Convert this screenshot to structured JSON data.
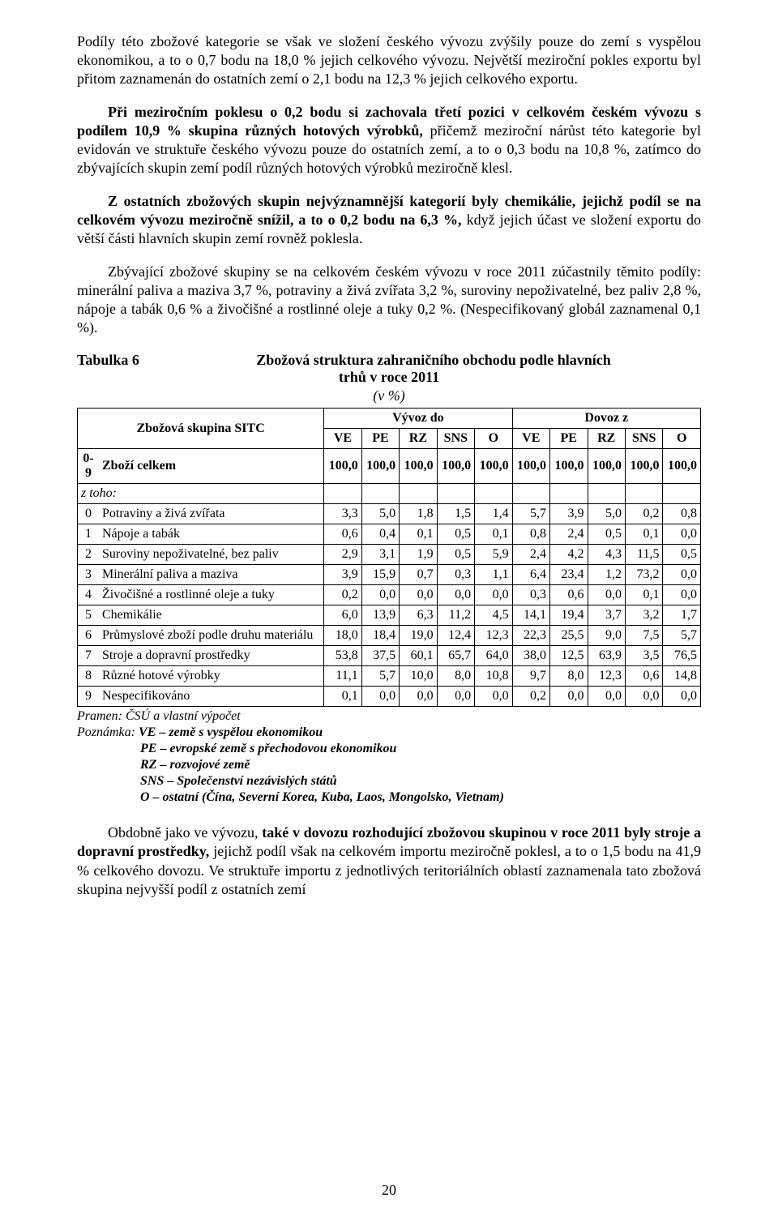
{
  "paragraphs": {
    "p1": "Podíly této zbožové kategorie se však ve složení českého vývozu zvýšily pouze do zemí s vyspělou ekonomikou, a to o 0,7 bodu na 18,0 % jejich celkového vývozu. Největší meziroční pokles exportu byl přitom zaznamenán do ostatních zemí o 2,1 bodu na 12,3 % jejich celkového exportu.",
    "p2_pre": "Při meziročním poklesu o 0,2 bodu si zachovala třetí pozici v celkovém českém vývozu s podílem 10,9 % skupina různých hotových výrobků,",
    "p2_post": " přičemž meziroční nárůst této kategorie byl evidován ve struktuře českého vývozu pouze do ostatních zemí, a to o 0,3 bodu na 10,8 %, zatímco do zbývajících skupin zemí podíl různých hotových výrobků meziročně klesl.",
    "p3_pre": "Z ostatních zbožových skupin nejvýznamnější kategorií byly chemikálie, jejichž podíl se na celkovém vývozu meziročně snížil, a to o 0,2 bodu na 6,3 %,",
    "p3_post": " když jejich účast ve složení exportu do větší části hlavních skupin zemí rovněž poklesla.",
    "p4": "Zbývající zbožové skupiny se na celkovém českém vývozu v roce 2011 zúčastnily těmito podíly: minerální paliva a maziva 3,7 %, potraviny a živá zvířata 3,2 %, suroviny nepoživatelné, bez paliv 2,8 %, nápoje a tabák 0,6 % a živočišné a rostlinné oleje a tuky 0,2 %. (Nespecifikovaný globál zaznamenal 0,1 %).",
    "p5_plain": "Obdobně jako ve vývozu, ",
    "p5_bold": "také v dovozu rozhodující zbožovou skupinou v roce 2011 byly stroje a dopravní prostředky,",
    "p5_post": " jejichž podíl však na celkovém importu meziročně poklesl, a to o 1,5 bodu na 41,9 % celkového dovozu. Ve struktuře importu z jednotlivých teritoriálních oblastí zaznamenala tato zbožová skupina nejvyšší podíl z ostatních zemí"
  },
  "table": {
    "label": "Tabulka 6",
    "title_line1": "Zbožová struktura zahraničního obchodu podle hlavních",
    "title_line2": "trhů v roce 2011",
    "unit": "(v %)",
    "corner": "Zbožová skupina SITC",
    "group_export": "Vývoz do",
    "group_import": "Dovoz z",
    "cols": [
      "VE",
      "PE",
      "RZ",
      "SNS",
      "O",
      "VE",
      "PE",
      "RZ",
      "SNS",
      "O"
    ],
    "rows": [
      {
        "num": "0-9",
        "label": "Zboží celkem",
        "v": [
          "100,0",
          "100,0",
          "100,0",
          "100,0",
          "100,0",
          "100,0",
          "100,0",
          "100,0",
          "100,0",
          "100,0"
        ],
        "bold": true
      },
      {
        "num": "",
        "label": "z toho:",
        "v": [
          "",
          "",
          "",
          "",
          "",
          "",
          "",
          "",
          "",
          ""
        ],
        "italic": true,
        "noborder": true
      },
      {
        "num": "0",
        "label": "Potraviny a živá zvířata",
        "v": [
          "3,3",
          "5,0",
          "1,8",
          "1,5",
          "1,4",
          "5,7",
          "3,9",
          "5,0",
          "0,2",
          "0,8"
        ]
      },
      {
        "num": "1",
        "label": "Nápoje a tabák",
        "v": [
          "0,6",
          "0,4",
          "0,1",
          "0,5",
          "0,1",
          "0,8",
          "2,4",
          "0,5",
          "0,1",
          "0,0"
        ]
      },
      {
        "num": "2",
        "label": "Suroviny nepoživatelné, bez paliv",
        "v": [
          "2,9",
          "3,1",
          "1,9",
          "0,5",
          "5,9",
          "2,4",
          "4,2",
          "4,3",
          "11,5",
          "0,5"
        ]
      },
      {
        "num": "3",
        "label": "Minerální paliva a maziva",
        "v": [
          "3,9",
          "15,9",
          "0,7",
          "0,3",
          "1,1",
          "6,4",
          "23,4",
          "1,2",
          "73,2",
          "0,0"
        ]
      },
      {
        "num": "4",
        "label": "Živočišné a rostlinné oleje a tuky",
        "v": [
          "0,2",
          "0,0",
          "0,0",
          "0,0",
          "0,0",
          "0,3",
          "0,6",
          "0,0",
          "0,1",
          "0,0"
        ]
      },
      {
        "num": "5",
        "label": "Chemikálie",
        "v": [
          "6,0",
          "13,9",
          "6,3",
          "11,2",
          "4,5",
          "14,1",
          "19,4",
          "3,7",
          "3,2",
          "1,7"
        ]
      },
      {
        "num": "6",
        "label": "Průmyslové zboží podle druhu materiálu",
        "v": [
          "18,0",
          "18,4",
          "19,0",
          "12,4",
          "12,3",
          "22,3",
          "25,5",
          "9,0",
          "7,5",
          "5,7"
        ]
      },
      {
        "num": "7",
        "label": "Stroje a dopravní prostředky",
        "v": [
          "53,8",
          "37,5",
          "60,1",
          "65,7",
          "64,0",
          "38,0",
          "12,5",
          "63,9",
          "3,5",
          "76,5"
        ]
      },
      {
        "num": "8",
        "label": "Různé hotové výrobky",
        "v": [
          "11,1",
          "5,7",
          "10,0",
          "8,0",
          "10,8",
          "9,7",
          "8,0",
          "12,3",
          "0,6",
          "14,8"
        ]
      },
      {
        "num": "9",
        "label": "Nespecifikováno",
        "v": [
          "0,1",
          "0,0",
          "0,0",
          "0,0",
          "0,0",
          "0,2",
          "0,0",
          "0,0",
          "0,0",
          "0,0"
        ]
      }
    ]
  },
  "source": {
    "line1": "Pramen: ČSÚ a vlastní výpočet",
    "line2_label": "Poznámka: ",
    "line2_rest": "VE – země s vyspělou ekonomikou",
    "line3": "PE – evropské země s přechodovou ekonomikou",
    "line4": "RZ – rozvojové země",
    "line5": "SNS – Společenství nezávislých států",
    "line6": "O – ostatní (Čína, Severní Korea, Kuba, Laos, Mongolsko, Vietnam)"
  },
  "page_number": "20"
}
